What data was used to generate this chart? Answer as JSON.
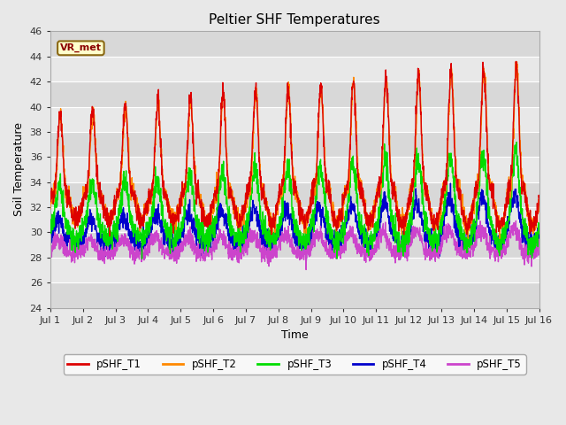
{
  "title": "Peltier SHF Temperatures",
  "xlabel": "Time",
  "ylabel": "Soil Temperature",
  "ylim": [
    24,
    46
  ],
  "yticks": [
    24,
    26,
    28,
    30,
    32,
    34,
    36,
    38,
    40,
    42,
    44,
    46
  ],
  "xtick_labels": [
    "Jul 1",
    "Jul 2",
    "Jul 3",
    "Jul 4",
    "Jul 5",
    "Jul 6",
    "Jul 7",
    "Jul 8",
    "Jul 9",
    "Jul 10",
    "Jul 11",
    "Jul 12",
    "Jul 13",
    "Jul 14",
    "Jul 15",
    "Jul 16"
  ],
  "annotation_text": "VR_met",
  "colors": {
    "pSHF_T1": "#dd0000",
    "pSHF_T2": "#ff8800",
    "pSHF_T3": "#00dd00",
    "pSHF_T4": "#0000cc",
    "pSHF_T5": "#cc44cc"
  },
  "legend_labels": [
    "pSHF_T1",
    "pSHF_T2",
    "pSHF_T3",
    "pSHF_T4",
    "pSHF_T5"
  ],
  "bg_color": "#e8e8e8",
  "band_colors": [
    "#d8d8d8",
    "#e8e8e8"
  ],
  "grid_color": "#ffffff",
  "n_days": 15,
  "points_per_day": 144,
  "seed": 42
}
